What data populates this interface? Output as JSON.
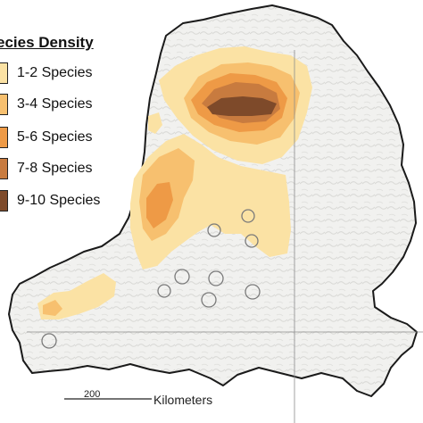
{
  "legend": {
    "title": "ecies Density",
    "items": [
      {
        "label": "1-2 Species",
        "color": "#fbe2a4"
      },
      {
        "label": "3-4 Species",
        "color": "#f7c06f"
      },
      {
        "label": "5-6 Species",
        "color": "#ee9a46"
      },
      {
        "label": "7-8 Species",
        "color": "#c87b3f"
      },
      {
        "label": "9-10 Species",
        "color": "#7e4a2a"
      }
    ]
  },
  "scale_bar": {
    "value_label": "200",
    "unit_label": "Kilometers"
  },
  "colors": {
    "terrain": "#f1f1ef",
    "outline": "#1a1a1a",
    "grid": "#8c8c8c",
    "circle_stroke": "#7a7a7a"
  }
}
